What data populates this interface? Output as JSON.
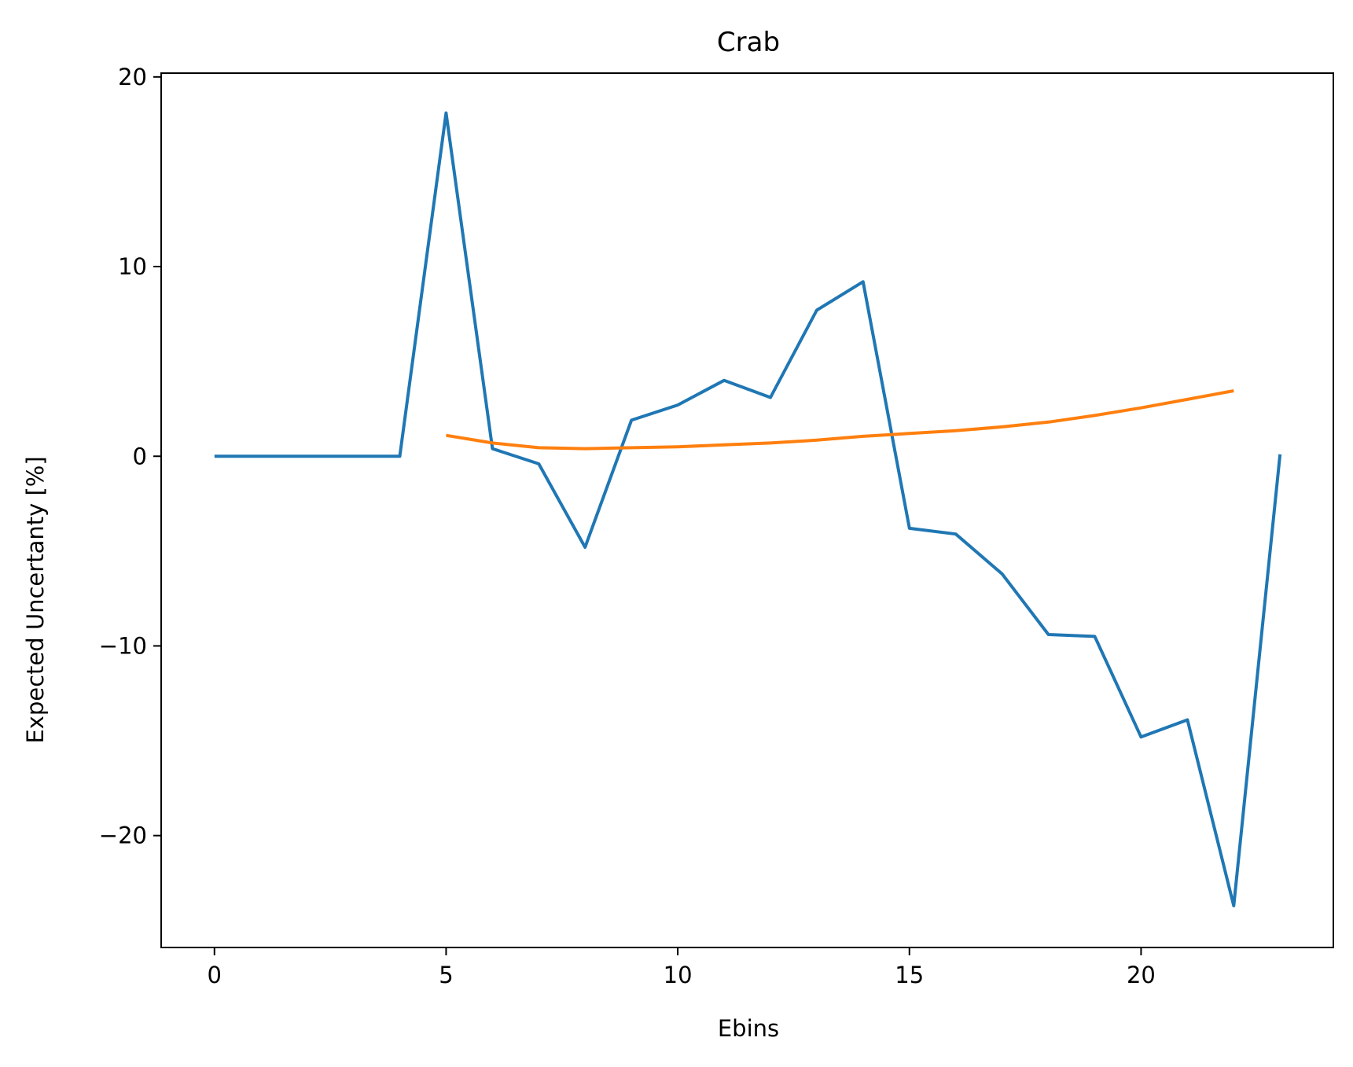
{
  "chart_data": {
    "type": "line",
    "title": "Crab",
    "xlabel": "Ebins",
    "ylabel": "Expected Uncertanty [%]",
    "xlim": [
      -1.15,
      24.15
    ],
    "ylim": [
      -25.9,
      20.2
    ],
    "xticks": [
      0,
      5,
      10,
      15,
      20
    ],
    "yticks": [
      20,
      10,
      0,
      -10,
      -20
    ],
    "xtick_labels": [
      "0",
      "5",
      "10",
      "15",
      "20"
    ],
    "ytick_labels": [
      "20",
      "10",
      "0",
      "−10",
      "−20"
    ],
    "grid": false,
    "series": [
      {
        "color": "#1f77b4",
        "x": [
          0,
          1,
          2,
          3,
          4,
          5,
          6,
          7,
          8,
          9,
          10,
          11,
          12,
          13,
          14,
          15,
          16,
          17,
          18,
          19,
          20,
          21,
          22,
          23
        ],
        "y": [
          0,
          0,
          0,
          0,
          0,
          18.1,
          0.4,
          -0.4,
          -4.8,
          1.9,
          2.7,
          4.0,
          3.1,
          7.7,
          9.2,
          -3.8,
          -4.1,
          -6.2,
          -9.4,
          -9.5,
          -14.8,
          -13.9,
          -23.7,
          0.1
        ]
      },
      {
        "color": "#ff7f0e",
        "x": [
          5,
          6,
          7,
          8,
          9,
          10,
          11,
          12,
          13,
          14,
          15,
          16,
          17,
          18,
          19,
          20,
          21,
          22
        ],
        "y": [
          1.1,
          0.7,
          0.45,
          0.4,
          0.45,
          0.5,
          0.6,
          0.7,
          0.85,
          1.05,
          1.2,
          1.35,
          1.55,
          1.8,
          2.15,
          2.55,
          3.0,
          3.45
        ]
      }
    ]
  }
}
